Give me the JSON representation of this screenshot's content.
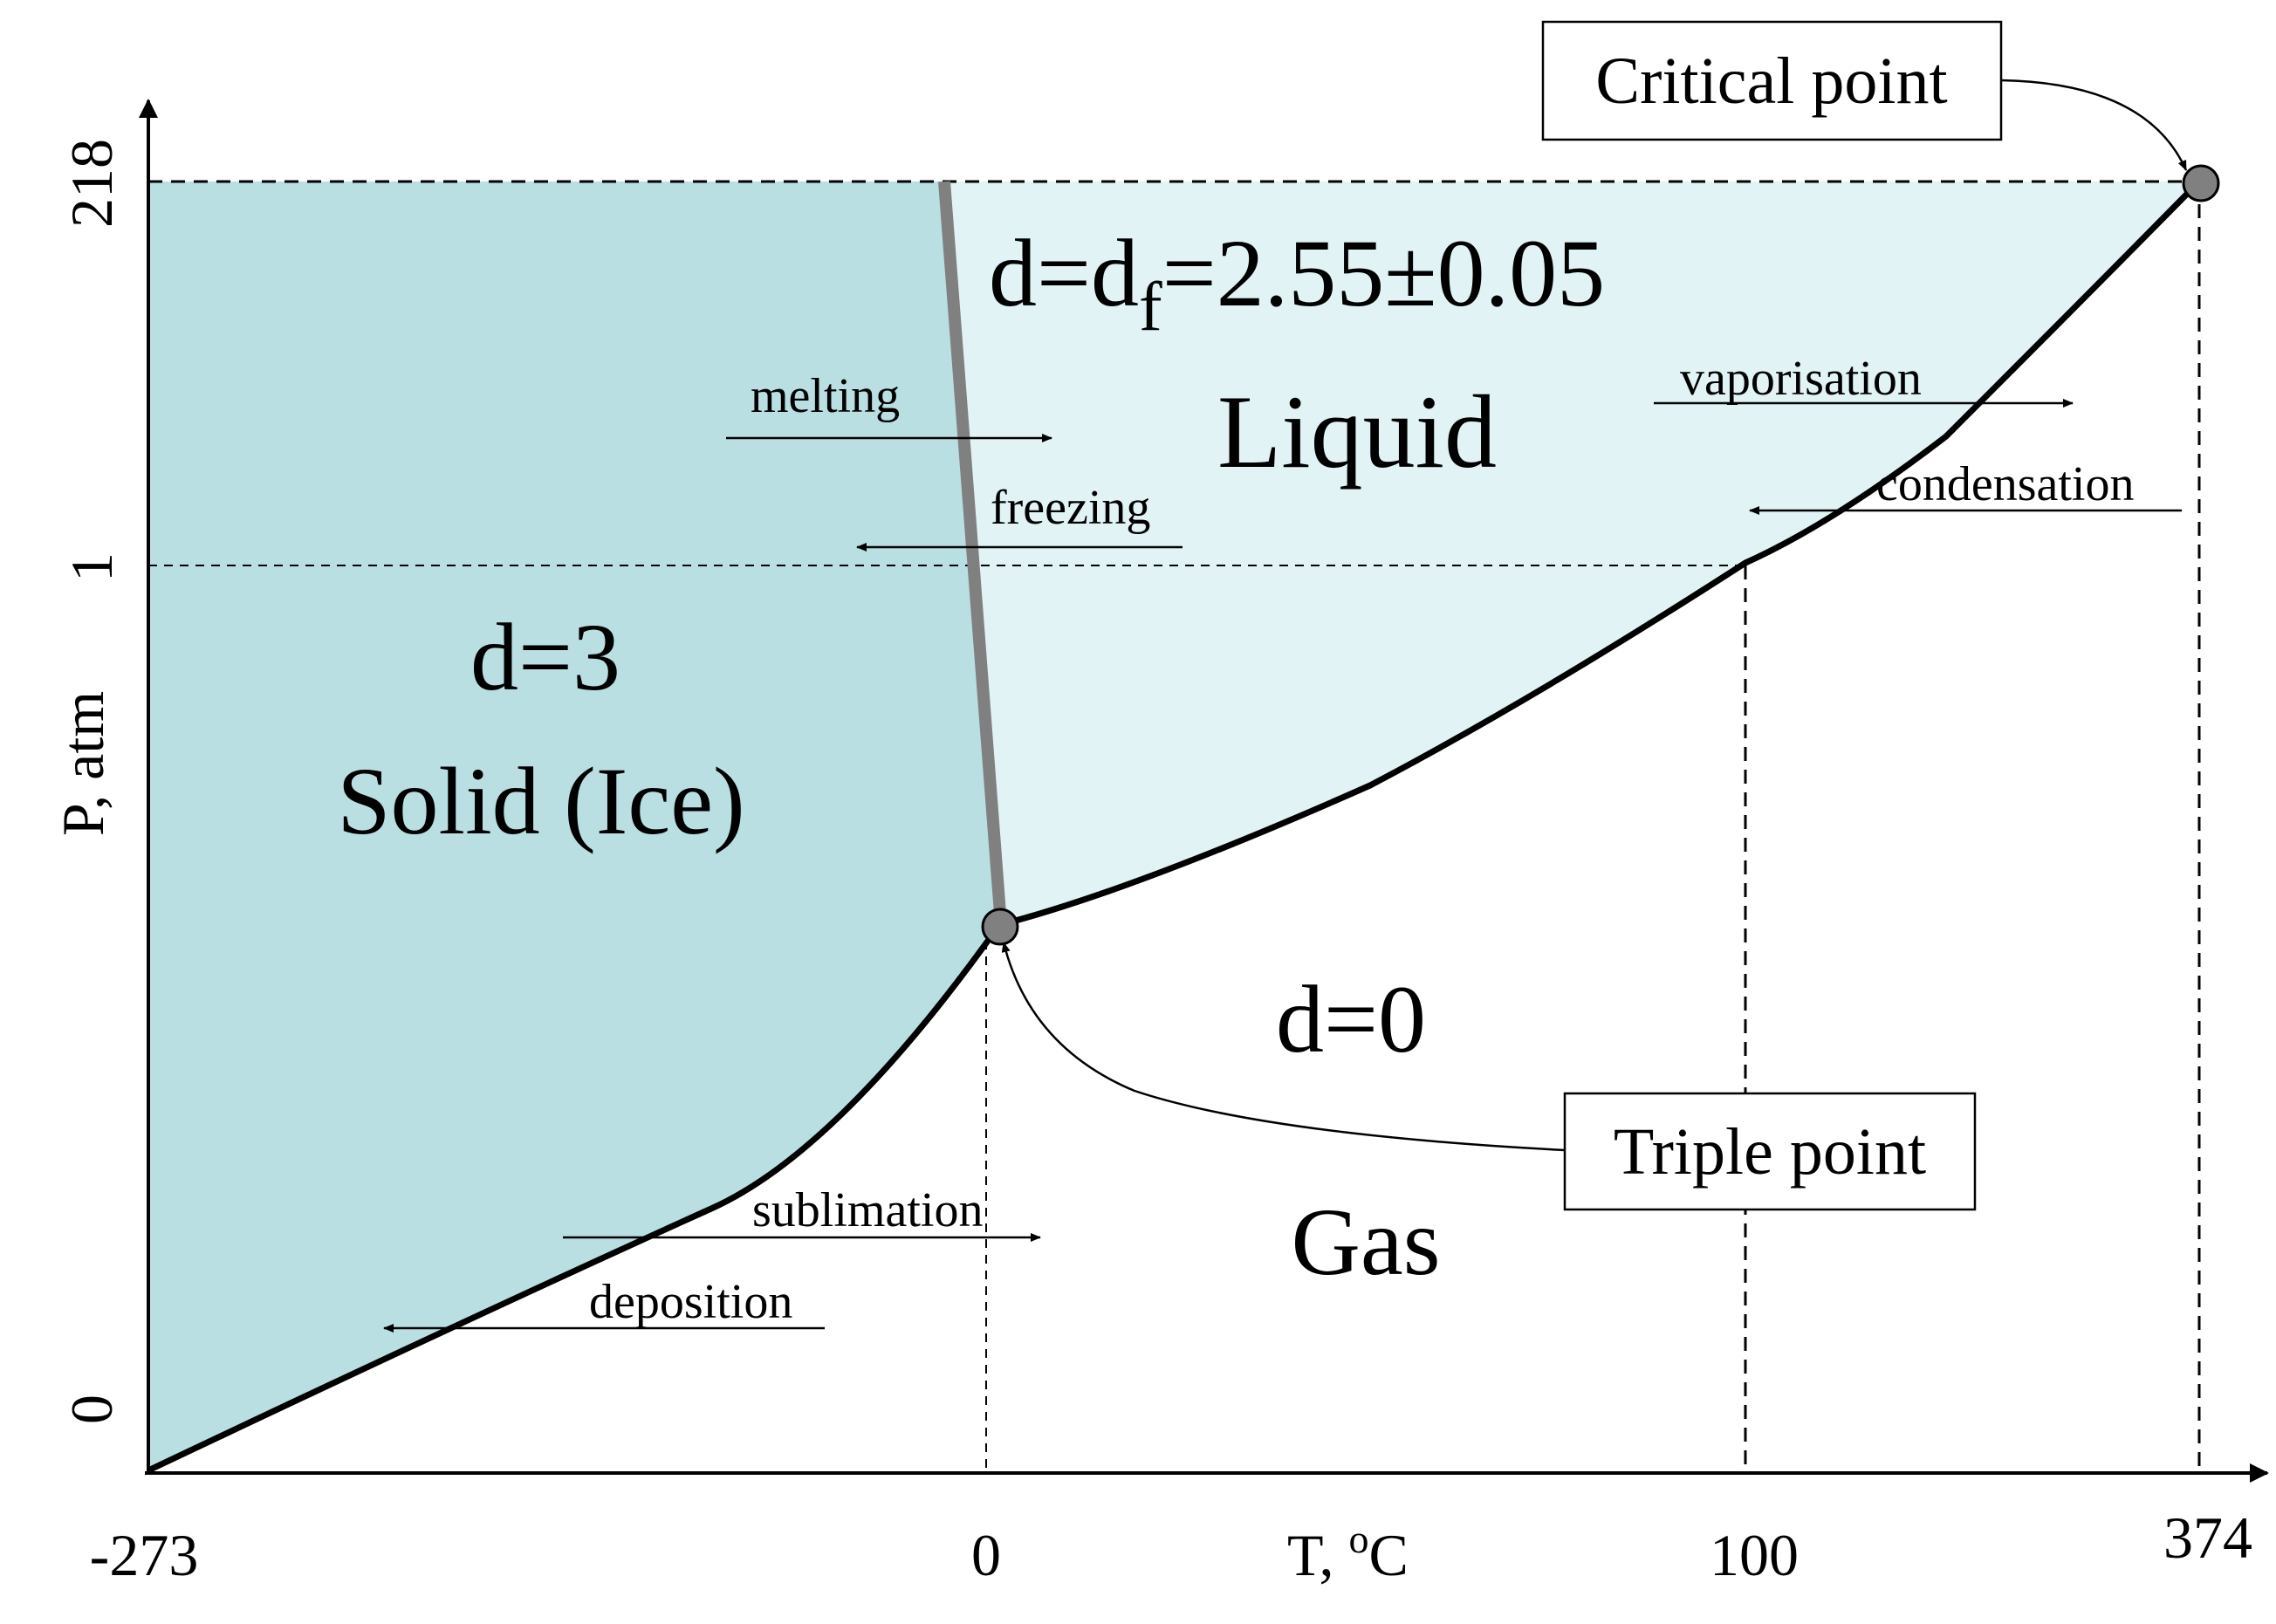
{
  "axes": {
    "x_label": "T, ",
    "x_label_sup": "o",
    "x_label_unit": "C",
    "y_label": "P, atm",
    "x_ticks": [
      "-273",
      "0",
      "100",
      "374"
    ],
    "y_ticks": [
      "0",
      "1",
      "218"
    ]
  },
  "regions": {
    "solid_dim": "d=3",
    "solid_name": "Solid (Ice)",
    "liquid_dim_main": "d=d",
    "liquid_dim_sub": "f",
    "liquid_dim_value": "=2.55±0.05",
    "liquid_name": "Liquid",
    "gas_dim": "d=0",
    "gas_name": "Gas"
  },
  "points": {
    "critical": "Critical point",
    "triple": "Triple point"
  },
  "transitions": {
    "melting": "melting",
    "freezing": "freezing",
    "vaporisation": "vaporisation",
    "condensation": "condensation",
    "sublimation": "sublimation",
    "deposition": "deposition"
  },
  "colors": {
    "solid_fill": "#b9dfe3",
    "liquid_fill": "#e1f3f5",
    "melting_curve": "#808080",
    "point_fill": "#808080"
  }
}
